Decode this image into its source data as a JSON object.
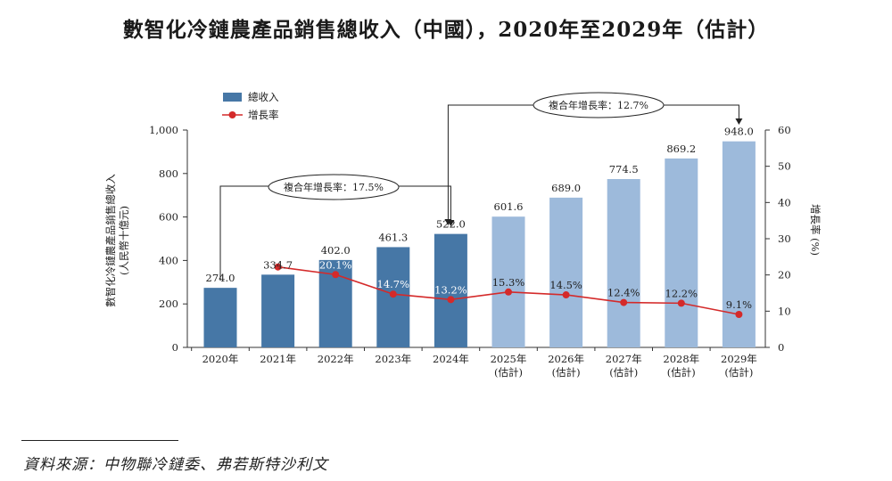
{
  "title": "數智化冷鏈農產品銷售總收入（中國），2020年至2029年（估計）",
  "source": "資料來源：中物聯冷鏈委、弗若斯特沙利文",
  "chart_data": {
    "type": "bar",
    "title": "數智化冷鏈農產品銷售總收入（中國），2020年至2029年（估計）",
    "categories": [
      "2020年",
      "2021年",
      "2022年",
      "2023年",
      "2024年",
      "2025年",
      "2026年",
      "2027年",
      "2028年",
      "2029年"
    ],
    "category_sublabels": [
      "",
      "",
      "",
      "",
      "",
      "(估計)",
      "(估計)",
      "(估計)",
      "(估計)",
      "(估計)"
    ],
    "series": [
      {
        "name": "總收入",
        "axis": "left",
        "type": "bar",
        "values": [
          274.0,
          334.7,
          402.0,
          461.3,
          522.0,
          601.6,
          689.0,
          774.5,
          869.2,
          948.0
        ],
        "labels": [
          "274.0",
          "334.7",
          "402.0",
          "461.3",
          "522.0",
          "601.6",
          "689.0",
          "774.5",
          "869.2",
          "948.0"
        ],
        "color_actual": "#4677a6",
        "color_estimated": "#9dbadb"
      },
      {
        "name": "增長率",
        "axis": "right",
        "type": "line",
        "values": [
          null,
          22.2,
          20.1,
          14.7,
          13.2,
          15.3,
          14.5,
          12.4,
          12.2,
          9.1
        ],
        "labels": [
          "",
          "22.2%",
          "20.1%",
          "14.7%",
          "13.2%",
          "15.3%",
          "14.5%",
          "12.4%",
          "12.2%",
          "9.1%"
        ],
        "color": "#d42a2a"
      }
    ],
    "ylabel_lines": [
      "數智化冷鏈農產品銷售總收入",
      "(人民幣十億元)"
    ],
    "ylim": [
      0,
      1000
    ],
    "yticks": [
      0,
      200,
      400,
      600,
      800,
      1000
    ],
    "ytick_labels": [
      "0",
      "200",
      "400",
      "600",
      "800",
      "1,000"
    ],
    "y2label": "增長率 (%)",
    "y2lim": [
      0,
      60
    ],
    "y2ticks": [
      0,
      10,
      20,
      30,
      40,
      50,
      60
    ],
    "legend": {
      "position": "top-left",
      "items": [
        "總收入",
        "增長率"
      ]
    },
    "annotations": [
      {
        "text": "複合年增長率：17.5%",
        "from": "2020年",
        "to": "2024年"
      },
      {
        "text": "複合年增長率：12.7%",
        "from": "2024年",
        "to": "2029年"
      }
    ],
    "grid": false
  }
}
